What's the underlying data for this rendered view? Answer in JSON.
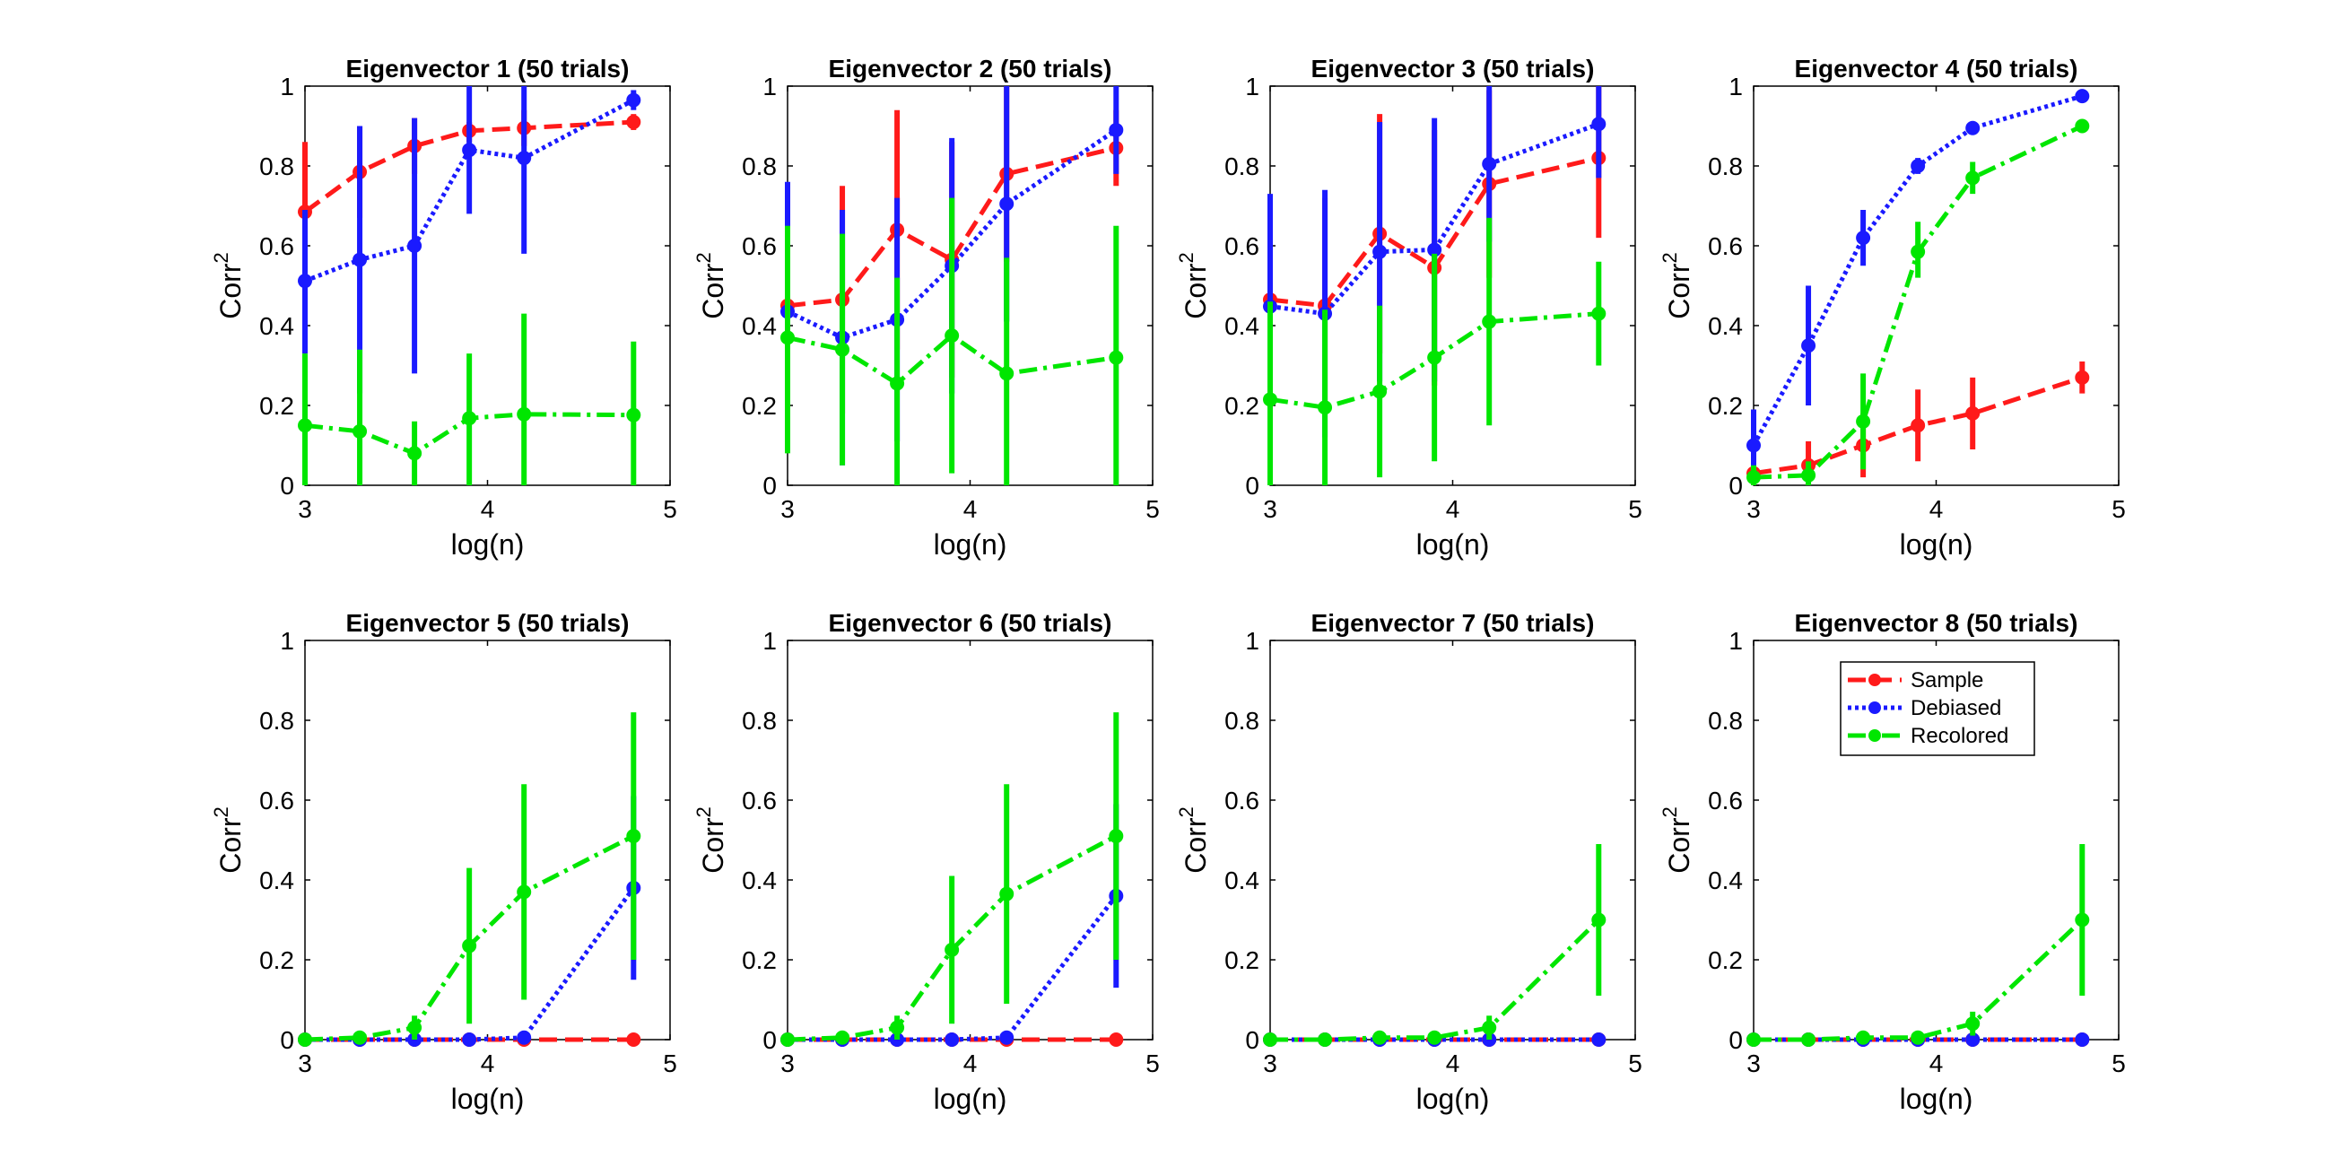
{
  "chart_data": [
    {
      "type": "line",
      "title": "Eigenvector 1 (50 trials)",
      "xlabel": "log(n)",
      "ylabel": "Corr",
      "ylabel_superscript": "2",
      "xlim": [
        3,
        5
      ],
      "ylim": [
        0,
        1
      ],
      "xticks": [
        "3",
        "4",
        "5"
      ],
      "yticks": [
        "0",
        "0.2",
        "0.4",
        "0.6",
        "0.8",
        "1"
      ],
      "x": [
        3.0,
        3.3,
        3.6,
        3.9,
        4.2,
        4.8
      ],
      "series": [
        {
          "name": "Sample",
          "values": [
            0.685,
            0.785,
            0.85,
            0.888,
            0.895,
            0.91
          ],
          "lower": [
            0.51,
            0.67,
            0.78,
            0.86,
            0.85,
            0.89
          ],
          "upper": [
            0.86,
            0.9,
            0.92,
            0.91,
            0.94,
            0.93
          ]
        },
        {
          "name": "Debiased",
          "values": [
            0.512,
            0.565,
            0.6,
            0.84,
            0.82,
            0.965
          ],
          "lower": [
            0.33,
            0.23,
            0.28,
            0.68,
            0.58,
            0.94
          ],
          "upper": [
            0.69,
            0.9,
            0.92,
            1.0,
            1.0,
            0.99
          ]
        },
        {
          "name": "Recolored",
          "values": [
            0.15,
            0.135,
            0.08,
            0.168,
            0.178,
            0.176
          ],
          "lower": [
            0.0,
            0.0,
            0.0,
            0.0,
            0.0,
            0.0
          ],
          "upper": [
            0.33,
            0.34,
            0.16,
            0.33,
            0.43,
            0.36
          ]
        }
      ]
    },
    {
      "type": "line",
      "title": "Eigenvector 2 (50 trials)",
      "xlabel": "log(n)",
      "ylabel": "Corr",
      "ylabel_superscript": "2",
      "xlim": [
        3,
        5
      ],
      "ylim": [
        0,
        1
      ],
      "xticks": [
        "3",
        "4",
        "5"
      ],
      "yticks": [
        "0",
        "0.2",
        "0.4",
        "0.6",
        "0.8",
        "1"
      ],
      "x": [
        3.0,
        3.3,
        3.6,
        3.9,
        4.2,
        4.8
      ],
      "series": [
        {
          "name": "Sample",
          "values": [
            0.45,
            0.465,
            0.64,
            0.565,
            0.78,
            0.845
          ],
          "lower": [
            0.3,
            0.18,
            0.34,
            0.27,
            0.56,
            0.75
          ],
          "upper": [
            0.6,
            0.75,
            0.94,
            0.86,
            1.0,
            0.94
          ]
        },
        {
          "name": "Debiased",
          "values": [
            0.435,
            0.37,
            0.415,
            0.55,
            0.705,
            0.89
          ],
          "lower": [
            0.11,
            0.05,
            0.11,
            0.23,
            0.41,
            0.78
          ],
          "upper": [
            0.76,
            0.69,
            0.72,
            0.87,
            1.0,
            1.0
          ]
        },
        {
          "name": "Recolored",
          "values": [
            0.37,
            0.34,
            0.255,
            0.375,
            0.28,
            0.32
          ],
          "lower": [
            0.08,
            0.05,
            0.0,
            0.03,
            0.0,
            0.0
          ],
          "upper": [
            0.65,
            0.63,
            0.52,
            0.72,
            0.57,
            0.65
          ]
        }
      ]
    },
    {
      "type": "line",
      "title": "Eigenvector 3 (50 trials)",
      "xlabel": "log(n)",
      "ylabel": "Corr",
      "ylabel_superscript": "2",
      "xlim": [
        3,
        5
      ],
      "ylim": [
        0,
        1
      ],
      "xticks": [
        "3",
        "4",
        "5"
      ],
      "yticks": [
        "0",
        "0.2",
        "0.4",
        "0.6",
        "0.8",
        "1"
      ],
      "x": [
        3.0,
        3.3,
        3.6,
        3.9,
        4.2,
        4.8
      ],
      "series": [
        {
          "name": "Sample",
          "values": [
            0.465,
            0.45,
            0.63,
            0.545,
            0.755,
            0.82
          ],
          "lower": [
            0.22,
            0.18,
            0.33,
            0.25,
            0.52,
            0.62
          ],
          "upper": [
            0.71,
            0.72,
            0.93,
            0.89,
            0.99,
            1.0
          ]
        },
        {
          "name": "Debiased",
          "values": [
            0.448,
            0.43,
            0.585,
            0.59,
            0.805,
            0.905
          ],
          "lower": [
            0.16,
            0.12,
            0.26,
            0.26,
            0.61,
            0.77
          ],
          "upper": [
            0.73,
            0.74,
            0.91,
            0.92,
            1.0,
            1.0
          ]
        },
        {
          "name": "Recolored",
          "values": [
            0.215,
            0.195,
            0.235,
            0.32,
            0.41,
            0.43
          ],
          "lower": [
            0.0,
            0.0,
            0.02,
            0.06,
            0.15,
            0.3
          ],
          "upper": [
            0.46,
            0.44,
            0.45,
            0.58,
            0.67,
            0.56
          ]
        }
      ]
    },
    {
      "type": "line",
      "title": "Eigenvector 4 (50 trials)",
      "xlabel": "log(n)",
      "ylabel": "Corr",
      "ylabel_superscript": "2",
      "xlim": [
        3,
        5
      ],
      "ylim": [
        0,
        1
      ],
      "xticks": [
        "3",
        "4",
        "5"
      ],
      "yticks": [
        "0",
        "0.2",
        "0.4",
        "0.6",
        "0.8",
        "1"
      ],
      "x": [
        3.0,
        3.3,
        3.6,
        3.9,
        4.2,
        4.8
      ],
      "series": [
        {
          "name": "Sample",
          "values": [
            0.03,
            0.05,
            0.1,
            0.15,
            0.18,
            0.27
          ],
          "lower": [
            0.0,
            0.0,
            0.02,
            0.06,
            0.09,
            0.23
          ],
          "upper": [
            0.06,
            0.11,
            0.18,
            0.24,
            0.27,
            0.31
          ]
        },
        {
          "name": "Debiased",
          "values": [
            0.1,
            0.35,
            0.62,
            0.8,
            0.895,
            0.975
          ],
          "lower": [
            0.04,
            0.2,
            0.55,
            0.78,
            0.88,
            0.96
          ],
          "upper": [
            0.19,
            0.5,
            0.69,
            0.82,
            0.91,
            0.99
          ]
        },
        {
          "name": "Recolored",
          "values": [
            0.02,
            0.025,
            0.16,
            0.585,
            0.77,
            0.9
          ],
          "lower": [
            0.0,
            0.0,
            0.04,
            0.52,
            0.73,
            0.89
          ],
          "upper": [
            0.05,
            0.06,
            0.28,
            0.66,
            0.81,
            0.91
          ]
        }
      ]
    },
    {
      "type": "line",
      "title": "Eigenvector 5 (50 trials)",
      "xlabel": "log(n)",
      "ylabel": "Corr",
      "ylabel_superscript": "2",
      "xlim": [
        3,
        5
      ],
      "ylim": [
        0,
        1
      ],
      "xticks": [
        "3",
        "4",
        "5"
      ],
      "yticks": [
        "0",
        "0.2",
        "0.4",
        "0.6",
        "0.8",
        "1"
      ],
      "x": [
        3.0,
        3.3,
        3.6,
        3.9,
        4.2,
        4.8
      ],
      "series": [
        {
          "name": "Sample",
          "values": [
            0.0,
            0.0,
            0.0,
            0.0,
            0.0,
            0.0
          ],
          "lower": [
            0.0,
            0.0,
            0.0,
            0.0,
            0.0,
            0.0
          ],
          "upper": [
            0.0,
            0.0,
            0.0,
            0.0,
            0.0,
            0.0
          ]
        },
        {
          "name": "Debiased",
          "values": [
            0.0,
            0.0,
            0.0,
            0.0,
            0.005,
            0.38
          ],
          "lower": [
            0.0,
            0.0,
            0.0,
            0.0,
            0.0,
            0.15
          ],
          "upper": [
            0.0,
            0.0,
            0.0,
            0.0,
            0.02,
            0.61
          ]
        },
        {
          "name": "Recolored",
          "values": [
            0.0,
            0.005,
            0.03,
            0.235,
            0.37,
            0.51
          ],
          "lower": [
            0.0,
            0.0,
            0.0,
            0.04,
            0.1,
            0.2
          ],
          "upper": [
            0.0,
            0.01,
            0.06,
            0.43,
            0.64,
            0.82
          ]
        }
      ]
    },
    {
      "type": "line",
      "title": "Eigenvector 6 (50 trials)",
      "xlabel": "log(n)",
      "ylabel": "Corr",
      "ylabel_superscript": "2",
      "xlim": [
        3,
        5
      ],
      "ylim": [
        0,
        1
      ],
      "xticks": [
        "3",
        "4",
        "5"
      ],
      "yticks": [
        "0",
        "0.2",
        "0.4",
        "0.6",
        "0.8",
        "1"
      ],
      "x": [
        3.0,
        3.3,
        3.6,
        3.9,
        4.2,
        4.8
      ],
      "series": [
        {
          "name": "Sample",
          "values": [
            0.0,
            0.0,
            0.0,
            0.0,
            0.0,
            0.0
          ],
          "lower": [
            0.0,
            0.0,
            0.0,
            0.0,
            0.0,
            0.0
          ],
          "upper": [
            0.0,
            0.0,
            0.0,
            0.0,
            0.0,
            0.0
          ]
        },
        {
          "name": "Debiased",
          "values": [
            0.0,
            0.0,
            0.0,
            0.0,
            0.005,
            0.36
          ],
          "lower": [
            0.0,
            0.0,
            0.0,
            0.0,
            0.0,
            0.13
          ],
          "upper": [
            0.0,
            0.0,
            0.0,
            0.0,
            0.02,
            0.59
          ]
        },
        {
          "name": "Recolored",
          "values": [
            0.0,
            0.005,
            0.03,
            0.225,
            0.365,
            0.51
          ],
          "lower": [
            0.0,
            0.0,
            0.0,
            0.04,
            0.09,
            0.2
          ],
          "upper": [
            0.0,
            0.01,
            0.06,
            0.41,
            0.64,
            0.82
          ]
        }
      ]
    },
    {
      "type": "line",
      "title": "Eigenvector 7 (50 trials)",
      "xlabel": "log(n)",
      "ylabel": "Corr",
      "ylabel_superscript": "2",
      "xlim": [
        3,
        5
      ],
      "ylim": [
        0,
        1
      ],
      "xticks": [
        "3",
        "4",
        "5"
      ],
      "yticks": [
        "0",
        "0.2",
        "0.4",
        "0.6",
        "0.8",
        "1"
      ],
      "x": [
        3.0,
        3.3,
        3.6,
        3.9,
        4.2,
        4.8
      ],
      "series": [
        {
          "name": "Sample",
          "values": [
            0.0,
            0.0,
            0.0,
            0.0,
            0.0,
            0.0
          ],
          "lower": [
            0.0,
            0.0,
            0.0,
            0.0,
            0.0,
            0.0
          ],
          "upper": [
            0.0,
            0.0,
            0.0,
            0.0,
            0.0,
            0.0
          ]
        },
        {
          "name": "Debiased",
          "values": [
            0.0,
            0.0,
            0.0,
            0.0,
            0.0,
            0.0
          ],
          "lower": [
            0.0,
            0.0,
            0.0,
            0.0,
            0.0,
            0.0
          ],
          "upper": [
            0.0,
            0.0,
            0.0,
            0.0,
            0.0,
            0.0
          ]
        },
        {
          "name": "Recolored",
          "values": [
            0.0,
            0.0,
            0.005,
            0.005,
            0.03,
            0.3
          ],
          "lower": [
            0.0,
            0.0,
            0.0,
            0.0,
            0.0,
            0.11
          ],
          "upper": [
            0.0,
            0.01,
            0.02,
            0.02,
            0.06,
            0.49
          ]
        }
      ]
    },
    {
      "type": "line",
      "title": "Eigenvector 8 (50 trials)",
      "xlabel": "log(n)",
      "ylabel": "Corr",
      "ylabel_superscript": "2",
      "xlim": [
        3,
        5
      ],
      "ylim": [
        0,
        1
      ],
      "xticks": [
        "3",
        "4",
        "5"
      ],
      "yticks": [
        "0",
        "0.2",
        "0.4",
        "0.6",
        "0.8",
        "1"
      ],
      "x": [
        3.0,
        3.3,
        3.6,
        3.9,
        4.2,
        4.8
      ],
      "legend": {
        "location": "upper right",
        "entries": [
          "Sample",
          "Debiased",
          "Recolored"
        ]
      },
      "series": [
        {
          "name": "Sample",
          "values": [
            0.0,
            0.0,
            0.0,
            0.0,
            0.0,
            0.0
          ],
          "lower": [
            0.0,
            0.0,
            0.0,
            0.0,
            0.0,
            0.0
          ],
          "upper": [
            0.0,
            0.0,
            0.0,
            0.0,
            0.0,
            0.0
          ]
        },
        {
          "name": "Debiased",
          "values": [
            0.0,
            0.0,
            0.0,
            0.0,
            0.0,
            0.0
          ],
          "lower": [
            0.0,
            0.0,
            0.0,
            0.0,
            0.0,
            0.0
          ],
          "upper": [
            0.0,
            0.0,
            0.0,
            0.0,
            0.0,
            0.0
          ]
        },
        {
          "name": "Recolored",
          "values": [
            0.0,
            0.0,
            0.005,
            0.005,
            0.04,
            0.3
          ],
          "lower": [
            0.0,
            0.0,
            0.0,
            0.0,
            0.01,
            0.11
          ],
          "upper": [
            0.0,
            0.01,
            0.02,
            0.02,
            0.07,
            0.49
          ]
        }
      ]
    }
  ],
  "series_styles": [
    {
      "name": "Sample",
      "color": "#ff1a1a",
      "dash": "dashed"
    },
    {
      "name": "Debiased",
      "color": "#1a1aff",
      "dash": "dotted"
    },
    {
      "name": "Recolored",
      "color": "#00e600",
      "dash": "dash-dot"
    }
  ]
}
